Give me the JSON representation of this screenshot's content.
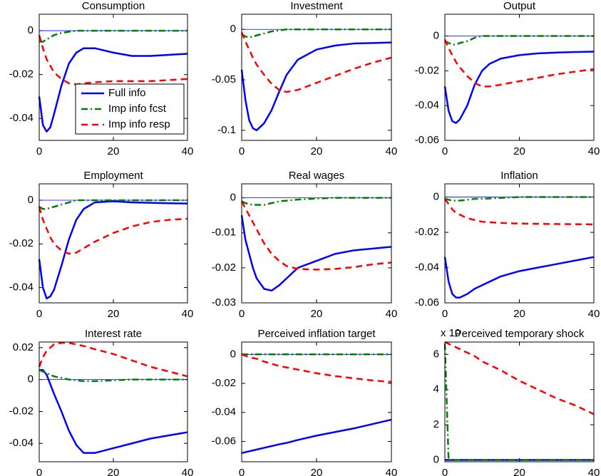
{
  "chart_data": [
    {
      "type": "line",
      "title": "Consumption",
      "x": [
        0,
        1,
        2,
        3,
        4,
        6,
        8,
        10,
        12,
        15,
        20,
        25,
        30,
        35,
        40
      ],
      "xlim": [
        0,
        40
      ],
      "xticks": [
        0,
        20,
        40
      ],
      "ylim": [
        -0.05,
        0.0075
      ],
      "yticks": [
        -0.04,
        -0.02,
        0
      ],
      "legend": "lower right",
      "series": [
        {
          "name": "Full info",
          "color": "#0000ff",
          "style": "solid",
          "values": [
            -0.03,
            -0.043,
            -0.046,
            -0.044,
            -0.038,
            -0.025,
            -0.015,
            -0.01,
            -0.008,
            -0.008,
            -0.01,
            -0.0115,
            -0.0115,
            -0.011,
            -0.0105
          ]
        },
        {
          "name": "Imp info fcst",
          "color": "#008000",
          "style": "dashdot",
          "values": [
            -0.005,
            -0.005,
            -0.004,
            -0.003,
            -0.002,
            -0.001,
            -0.0005,
            0,
            0,
            0,
            0,
            0,
            0,
            0,
            0
          ]
        },
        {
          "name": "Imp info resp",
          "color": "#ff0000",
          "style": "dashed",
          "values": [
            -0.002,
            -0.008,
            -0.013,
            -0.016,
            -0.019,
            -0.022,
            -0.024,
            -0.0245,
            -0.024,
            -0.0235,
            -0.023,
            -0.023,
            -0.023,
            -0.0225,
            -0.022
          ]
        }
      ]
    },
    {
      "type": "line",
      "title": "Investment",
      "x": [
        0,
        1,
        2,
        3,
        4,
        6,
        8,
        10,
        12,
        15,
        20,
        25,
        30,
        35,
        40
      ],
      "xlim": [
        0,
        40
      ],
      "xticks": [
        0,
        20,
        40
      ],
      "ylim": [
        -0.11,
        0.015
      ],
      "yticks": [
        -0.1,
        -0.05,
        0
      ],
      "series": [
        {
          "color": "#0000ff",
          "style": "solid",
          "values": [
            -0.04,
            -0.07,
            -0.09,
            -0.098,
            -0.1,
            -0.093,
            -0.08,
            -0.062,
            -0.045,
            -0.03,
            -0.02,
            -0.016,
            -0.014,
            -0.0135,
            -0.013
          ]
        },
        {
          "color": "#008000",
          "style": "dashdot",
          "values": [
            -0.005,
            -0.007,
            -0.008,
            -0.007,
            -0.006,
            -0.004,
            -0.002,
            -0.001,
            0,
            0,
            0,
            0,
            0,
            0,
            0
          ]
        },
        {
          "color": "#ff0000",
          "style": "dashed",
          "values": [
            -0.003,
            -0.012,
            -0.02,
            -0.028,
            -0.035,
            -0.045,
            -0.054,
            -0.06,
            -0.062,
            -0.06,
            -0.053,
            -0.046,
            -0.039,
            -0.033,
            -0.028
          ]
        }
      ]
    },
    {
      "type": "line",
      "title": "Output",
      "x": [
        0,
        1,
        2,
        3,
        4,
        6,
        8,
        10,
        12,
        15,
        20,
        25,
        30,
        35,
        40
      ],
      "xlim": [
        0,
        40
      ],
      "xticks": [
        0,
        20,
        40
      ],
      "ylim": [
        -0.06,
        0.0125
      ],
      "yticks": [
        -0.06,
        -0.04,
        -0.02,
        0
      ],
      "series": [
        {
          "color": "#0000ff",
          "style": "solid",
          "values": [
            -0.029,
            -0.043,
            -0.049,
            -0.05,
            -0.048,
            -0.04,
            -0.028,
            -0.02,
            -0.016,
            -0.013,
            -0.011,
            -0.01,
            -0.0095,
            -0.0092,
            -0.009
          ]
        },
        {
          "color": "#008000",
          "style": "dashdot",
          "values": [
            -0.003,
            -0.004,
            -0.005,
            -0.005,
            -0.004,
            -0.003,
            -0.001,
            0,
            0,
            0,
            0,
            0,
            0,
            0,
            0
          ]
        },
        {
          "color": "#ff0000",
          "style": "dashed",
          "values": [
            -0.002,
            -0.007,
            -0.011,
            -0.015,
            -0.018,
            -0.023,
            -0.027,
            -0.029,
            -0.029,
            -0.028,
            -0.026,
            -0.024,
            -0.022,
            -0.0205,
            -0.019
          ]
        }
      ]
    },
    {
      "type": "line",
      "title": "Employment",
      "x": [
        0,
        1,
        2,
        3,
        4,
        6,
        8,
        10,
        12,
        15,
        20,
        25,
        30,
        35,
        40
      ],
      "xlim": [
        0,
        40
      ],
      "xticks": [
        0,
        20,
        40
      ],
      "ylim": [
        -0.047,
        0.0075
      ],
      "yticks": [
        -0.04,
        -0.02,
        0
      ],
      "series": [
        {
          "color": "#0000ff",
          "style": "solid",
          "values": [
            -0.027,
            -0.04,
            -0.045,
            -0.044,
            -0.041,
            -0.03,
            -0.018,
            -0.009,
            -0.004,
            -0.001,
            -0.0005,
            -0.001,
            -0.0012,
            -0.0014,
            -0.0015
          ]
        },
        {
          "color": "#008000",
          "style": "dashdot",
          "values": [
            -0.003,
            -0.004,
            -0.004,
            -0.0035,
            -0.003,
            -0.002,
            -0.001,
            0,
            0,
            0,
            0,
            0,
            0,
            0,
            0
          ]
        },
        {
          "color": "#ff0000",
          "style": "dashed",
          "values": [
            -0.003,
            -0.009,
            -0.013,
            -0.017,
            -0.02,
            -0.023,
            -0.0245,
            -0.024,
            -0.022,
            -0.019,
            -0.015,
            -0.012,
            -0.01,
            -0.009,
            -0.0085
          ]
        }
      ]
    },
    {
      "type": "line",
      "title": "Real wages",
      "x": [
        0,
        1,
        2,
        3,
        4,
        6,
        8,
        10,
        12,
        15,
        20,
        25,
        30,
        35,
        40
      ],
      "xlim": [
        0,
        40
      ],
      "xticks": [
        0,
        20,
        40
      ],
      "ylim": [
        -0.03,
        0.004
      ],
      "yticks": [
        -0.03,
        -0.02,
        -0.01,
        0
      ],
      "series": [
        {
          "color": "#0000ff",
          "style": "solid",
          "values": [
            -0.005,
            -0.012,
            -0.016,
            -0.02,
            -0.023,
            -0.026,
            -0.0265,
            -0.025,
            -0.023,
            -0.02,
            -0.018,
            -0.016,
            -0.015,
            -0.0145,
            -0.014
          ]
        },
        {
          "color": "#008000",
          "style": "dashdot",
          "values": [
            -0.001,
            -0.0015,
            -0.0018,
            -0.002,
            -0.002,
            -0.002,
            -0.0015,
            -0.001,
            -0.0008,
            -0.0005,
            -0.0002,
            0,
            0,
            0,
            0
          ]
        },
        {
          "color": "#ff0000",
          "style": "dashed",
          "values": [
            -0.001,
            -0.003,
            -0.005,
            -0.007,
            -0.009,
            -0.013,
            -0.016,
            -0.018,
            -0.0195,
            -0.0203,
            -0.0205,
            -0.0203,
            -0.0198,
            -0.019,
            -0.0185
          ]
        }
      ]
    },
    {
      "type": "line",
      "title": "Inflation",
      "x": [
        0,
        1,
        2,
        3,
        4,
        6,
        8,
        10,
        12,
        15,
        20,
        25,
        30,
        35,
        40
      ],
      "xlim": [
        0,
        40
      ],
      "xticks": [
        0,
        20,
        40
      ],
      "ylim": [
        -0.06,
        0.0075
      ],
      "yticks": [
        -0.06,
        -0.04,
        -0.02,
        0
      ],
      "series": [
        {
          "color": "#0000ff",
          "style": "solid",
          "values": [
            -0.034,
            -0.048,
            -0.055,
            -0.057,
            -0.057,
            -0.055,
            -0.052,
            -0.05,
            -0.048,
            -0.045,
            -0.042,
            -0.04,
            -0.038,
            -0.036,
            -0.034
          ]
        },
        {
          "color": "#008000",
          "style": "dashdot",
          "values": [
            -0.001,
            -0.0015,
            -0.002,
            -0.002,
            -0.002,
            -0.0015,
            -0.001,
            -0.001,
            -0.0008,
            -0.0005,
            0,
            0,
            0,
            0,
            0
          ]
        },
        {
          "color": "#ff0000",
          "style": "dashed",
          "values": [
            -0.001,
            -0.004,
            -0.007,
            -0.009,
            -0.01,
            -0.012,
            -0.013,
            -0.014,
            -0.0143,
            -0.0147,
            -0.015,
            -0.0152,
            -0.0153,
            -0.0154,
            -0.0155
          ]
        }
      ]
    },
    {
      "type": "line",
      "title": "Interest rate",
      "x": [
        0,
        1,
        2,
        3,
        4,
        6,
        8,
        10,
        12,
        15,
        20,
        25,
        30,
        35,
        40
      ],
      "xlim": [
        0,
        40
      ],
      "xticks": [
        0,
        20,
        40
      ],
      "ylim": [
        -0.0515,
        0.0235
      ],
      "yticks": [
        -0.04,
        -0.02,
        0,
        0.02
      ],
      "series": [
        {
          "color": "#0000ff",
          "style": "solid",
          "values": [
            0.006,
            0.006,
            0.003,
            -0.003,
            -0.009,
            -0.02,
            -0.032,
            -0.041,
            -0.046,
            -0.046,
            -0.043,
            -0.04,
            -0.037,
            -0.035,
            -0.033
          ]
        },
        {
          "color": "#008000",
          "style": "dashdot",
          "values": [
            0.006,
            0.005,
            0.004,
            0.003,
            0.002,
            0.001,
            0,
            -0.0005,
            -0.001,
            -0.001,
            -0.0005,
            0,
            0,
            0,
            0
          ]
        },
        {
          "color": "#ff0000",
          "style": "dashed",
          "values": [
            0.008,
            0.014,
            0.018,
            0.02,
            0.022,
            0.023,
            0.023,
            0.022,
            0.021,
            0.019,
            0.016,
            0.012,
            0.008,
            0.005,
            0.002
          ]
        }
      ]
    },
    {
      "type": "line",
      "title": "Perceived inflation target",
      "x": [
        0,
        1,
        2,
        3,
        4,
        6,
        8,
        10,
        12,
        15,
        20,
        25,
        30,
        35,
        40
      ],
      "xlim": [
        0,
        40
      ],
      "xticks": [
        0,
        20,
        40
      ],
      "ylim": [
        -0.074,
        0.0085
      ],
      "yticks": [
        -0.06,
        -0.04,
        -0.02,
        0
      ],
      "series": [
        {
          "color": "#0000ff",
          "style": "solid",
          "values": [
            -0.068,
            -0.0674,
            -0.0668,
            -0.0662,
            -0.0656,
            -0.0644,
            -0.0632,
            -0.062,
            -0.061,
            -0.059,
            -0.056,
            -0.0535,
            -0.051,
            -0.048,
            -0.045
          ]
        },
        {
          "color": "#008000",
          "style": "dashdot",
          "values": [
            0,
            0,
            0,
            0,
            0,
            0,
            0,
            0,
            0,
            0,
            0,
            0,
            0,
            0,
            0
          ]
        },
        {
          "color": "#ff0000",
          "style": "dashed",
          "values": [
            0,
            -0.001,
            -0.002,
            -0.0025,
            -0.003,
            -0.005,
            -0.0065,
            -0.008,
            -0.009,
            -0.0105,
            -0.013,
            -0.015,
            -0.0165,
            -0.018,
            -0.019
          ]
        }
      ]
    },
    {
      "type": "line",
      "title": "Perceived temporary shock",
      "y_exponent_label": "x 10",
      "x": [
        0,
        1,
        2,
        3,
        4,
        6,
        8,
        10,
        12,
        15,
        20,
        25,
        30,
        35,
        40
      ],
      "xlim": [
        0,
        40
      ],
      "xticks": [
        0,
        20,
        40
      ],
      "ylim": [
        -0.1,
        6.7
      ],
      "yticks": [
        0,
        2,
        4,
        6
      ],
      "series": [
        {
          "color": "#0000ff",
          "style": "solid",
          "values": [
            0,
            0,
            0,
            0,
            0,
            0,
            0,
            0,
            0,
            0,
            0,
            0,
            0,
            0,
            0
          ]
        },
        {
          "color": "#008000",
          "style": "dashdot",
          "values": [
            6.6,
            0,
            0,
            0,
            0,
            0,
            0,
            0,
            0,
            0,
            0,
            0,
            0,
            0,
            0
          ]
        },
        {
          "color": "#ff0000",
          "style": "dashed",
          "values": [
            6.7,
            6.6,
            6.5,
            6.4,
            6.3,
            6.1,
            5.9,
            5.6,
            5.4,
            5.1,
            4.5,
            4.0,
            3.5,
            3.1,
            2.6
          ]
        }
      ]
    }
  ]
}
